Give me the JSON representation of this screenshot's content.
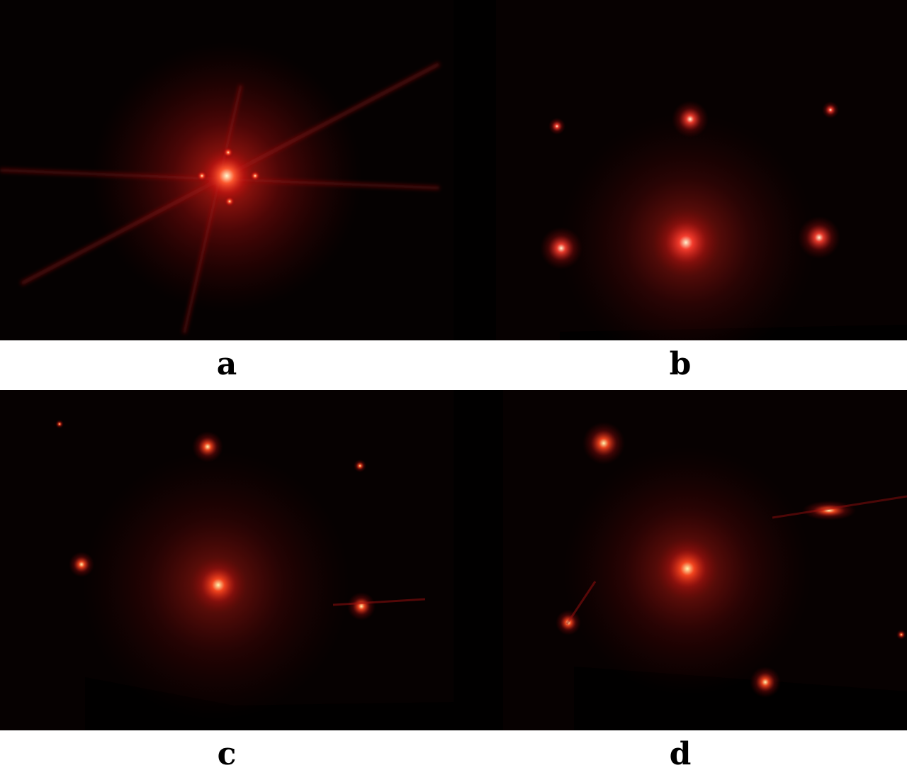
{
  "panels": [
    {
      "id": "a",
      "label": "a"
    },
    {
      "id": "b",
      "label": "b"
    },
    {
      "id": "c",
      "label": "c"
    },
    {
      "id": "d",
      "label": "d"
    }
  ],
  "colors": {
    "background": "#050101",
    "glow": "#ff1a1a",
    "core": "#fff7b0",
    "page": "#ffffff"
  }
}
